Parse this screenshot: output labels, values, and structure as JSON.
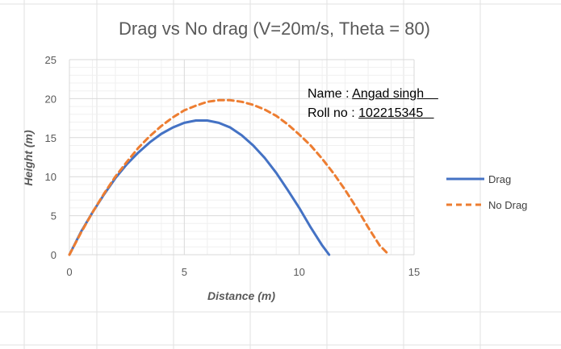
{
  "chart_data": {
    "type": "line",
    "title": "Drag vs No drag (V=20m/s, Theta = 80)",
    "xlabel": "Distance (m)",
    "ylabel": "Height (m)",
    "xlim": [
      0,
      15
    ],
    "ylim": [
      0,
      25
    ],
    "x_ticks": [
      "0",
      "5",
      "10",
      "15"
    ],
    "y_ticks": [
      "0",
      "5",
      "10",
      "15",
      "20",
      "25"
    ],
    "grid": "major and minor",
    "legend_position": "right",
    "series": [
      {
        "name": "Drag",
        "color": "#4472C4",
        "style": "solid",
        "points": [
          [
            0,
            0
          ],
          [
            0.5,
            2.9
          ],
          [
            1,
            5.4
          ],
          [
            1.5,
            7.7
          ],
          [
            2,
            9.8
          ],
          [
            2.5,
            11.6
          ],
          [
            3,
            13.1
          ],
          [
            3.5,
            14.4
          ],
          [
            4,
            15.5
          ],
          [
            4.5,
            16.3
          ],
          [
            5,
            16.9
          ],
          [
            5.5,
            17.2
          ],
          [
            6,
            17.2
          ],
          [
            6.5,
            16.9
          ],
          [
            7,
            16.3
          ],
          [
            7.5,
            15.3
          ],
          [
            8,
            14.0
          ],
          [
            8.5,
            12.4
          ],
          [
            9,
            10.5
          ],
          [
            9.5,
            8.3
          ],
          [
            10,
            6.0
          ],
          [
            10.5,
            3.5
          ],
          [
            11,
            1.2
          ],
          [
            11.3,
            0
          ]
        ]
      },
      {
        "name": "No Drag",
        "color": "#ED7D31",
        "style": "dashed",
        "points": [
          [
            0,
            0
          ],
          [
            0.5,
            2.8
          ],
          [
            1,
            5.4
          ],
          [
            1.5,
            7.8
          ],
          [
            2,
            10.0
          ],
          [
            2.5,
            11.9
          ],
          [
            3,
            13.7
          ],
          [
            3.5,
            15.2
          ],
          [
            4,
            16.5
          ],
          [
            4.5,
            17.6
          ],
          [
            5,
            18.5
          ],
          [
            5.5,
            19.1
          ],
          [
            6,
            19.6
          ],
          [
            6.5,
            19.8
          ],
          [
            7,
            19.8
          ],
          [
            7.5,
            19.6
          ],
          [
            8,
            19.2
          ],
          [
            8.5,
            18.6
          ],
          [
            9,
            17.8
          ],
          [
            9.5,
            16.7
          ],
          [
            10,
            15.4
          ],
          [
            10.5,
            14.0
          ],
          [
            11,
            12.3
          ],
          [
            11.5,
            10.4
          ],
          [
            12,
            8.3
          ],
          [
            12.5,
            6.0
          ],
          [
            13,
            3.5
          ],
          [
            13.5,
            1.2
          ],
          [
            13.9,
            0
          ]
        ]
      }
    ]
  },
  "annotation": {
    "name_label": "Name : ",
    "name_value": "Angad singh    ",
    "roll_label": "Roll no : ",
    "roll_value": "102215345   "
  }
}
